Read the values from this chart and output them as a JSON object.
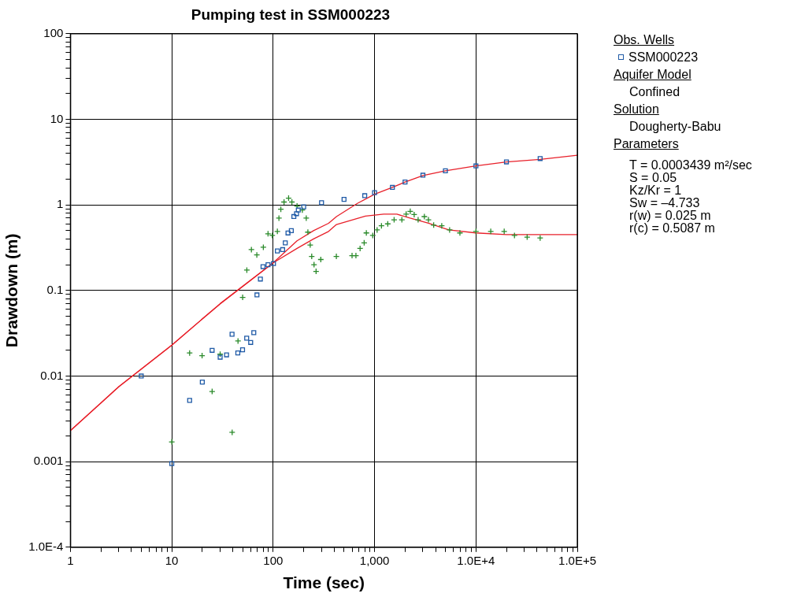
{
  "chart_data": {
    "type": "scatter",
    "title": "Pumping test in SSM000223",
    "xlabel": "Time (sec)",
    "ylabel": "Drawdown (m)",
    "log": "xy",
    "grid": true,
    "legend": "top right",
    "legend_title": "Obs. Wells",
    "xlim": [
      1,
      100000
    ],
    "ylim": [
      0.0001,
      100
    ],
    "xticks": [
      1,
      {
        "value": 2,
        "label": null
      },
      {
        "value": 3,
        "label": null
      },
      {
        "value": 4,
        "label": null
      },
      {
        "value": 5,
        "label": null
      },
      {
        "value": 6,
        "label": null
      },
      {
        "value": 7,
        "label": null
      },
      {
        "value": 8,
        "label": null
      },
      {
        "value": 9,
        "label": null
      },
      10,
      {
        "value": 20,
        "label": null
      },
      {
        "value": 30,
        "label": null
      },
      {
        "value": 40,
        "label": null
      },
      {
        "value": 50,
        "label": null
      },
      {
        "value": 60,
        "label": null
      },
      {
        "value": 70,
        "label": null
      },
      {
        "value": 80,
        "label": null
      },
      {
        "value": 90,
        "label": null
      },
      100,
      {
        "value": 200,
        "label": null
      },
      {
        "value": 300,
        "label": null
      },
      {
        "value": 400,
        "label": null
      },
      {
        "value": 500,
        "label": null
      },
      {
        "value": 600,
        "label": null
      },
      {
        "value": 700,
        "label": null
      },
      {
        "value": 800,
        "label": null
      },
      {
        "value": 900,
        "label": null
      },
      {
        "value": 1000,
        "label": "1,000"
      },
      {
        "value": 2000,
        "label": null
      },
      {
        "value": 3000,
        "label": null
      },
      {
        "value": 4000,
        "label": null
      },
      {
        "value": 5000,
        "label": null
      },
      {
        "value": 6000,
        "label": null
      },
      {
        "value": 7000,
        "label": null
      },
      {
        "value": 8000,
        "label": null
      },
      {
        "value": 9000,
        "label": null
      },
      {
        "value": 10000,
        "label": "1.0E+4"
      },
      {
        "value": 20000,
        "label": null
      },
      {
        "value": 30000,
        "label": null
      },
      {
        "value": 40000,
        "label": null
      },
      {
        "value": 50000,
        "label": null
      },
      {
        "value": 60000,
        "label": null
      },
      {
        "value": 70000,
        "label": null
      },
      {
        "value": 80000,
        "label": null
      },
      {
        "value": 90000,
        "label": null
      },
      {
        "value": 100000,
        "label": "1.0E+5"
      }
    ],
    "yticks": [
      {
        "value": 0.0001,
        "label": "1.0E-4"
      },
      {
        "value": 0.0002,
        "label": null
      },
      {
        "value": 0.0003,
        "label": null
      },
      {
        "value": 0.0004,
        "label": null
      },
      {
        "value": 0.0005,
        "label": null
      },
      {
        "value": 0.0006,
        "label": null
      },
      {
        "value": 0.0007,
        "label": null
      },
      {
        "value": 0.0008,
        "label": null
      },
      {
        "value": 0.0009,
        "label": null
      },
      0.001,
      {
        "value": 0.002,
        "label": null
      },
      {
        "value": 0.003,
        "label": null
      },
      {
        "value": 0.004,
        "label": null
      },
      {
        "value": 0.005,
        "label": null
      },
      {
        "value": 0.006,
        "label": null
      },
      {
        "value": 0.007,
        "label": null
      },
      {
        "value": 0.008,
        "label": null
      },
      {
        "value": 0.009,
        "label": null
      },
      0.01,
      {
        "value": 0.02,
        "label": null
      },
      {
        "value": 0.03,
        "label": null
      },
      {
        "value": 0.04,
        "label": null
      },
      {
        "value": 0.05,
        "label": null
      },
      {
        "value": 0.06,
        "label": null
      },
      {
        "value": 0.07,
        "label": null
      },
      {
        "value": 0.08,
        "label": null
      },
      {
        "value": 0.09,
        "label": null
      },
      0.1,
      {
        "value": 0.2,
        "label": null
      },
      {
        "value": 0.3,
        "label": null
      },
      {
        "value": 0.4,
        "label": null
      },
      {
        "value": 0.5,
        "label": null
      },
      {
        "value": 0.6,
        "label": null
      },
      {
        "value": 0.7,
        "label": null
      },
      {
        "value": 0.8,
        "label": null
      },
      {
        "value": 0.9,
        "label": null
      },
      1,
      {
        "value": 2,
        "label": null
      },
      {
        "value": 3,
        "label": null
      },
      {
        "value": 4,
        "label": null
      },
      {
        "value": 5,
        "label": null
      },
      {
        "value": 6,
        "label": null
      },
      {
        "value": 7,
        "label": null
      },
      {
        "value": 8,
        "label": null
      },
      {
        "value": 9,
        "label": null
      },
      10,
      {
        "value": 20,
        "label": null
      },
      {
        "value": 30,
        "label": null
      },
      {
        "value": 40,
        "label": null
      },
      {
        "value": 50,
        "label": null
      },
      {
        "value": 60,
        "label": null
      },
      {
        "value": 70,
        "label": null
      },
      {
        "value": 80,
        "label": null
      },
      {
        "value": 90,
        "label": null
      },
      100
    ],
    "series": [
      {
        "type": "line",
        "color": "#e8202a",
        "marker": "none",
        "x": [
          1,
          3,
          10,
          30,
          100,
          172,
          250,
          352,
          421,
          677,
          1000,
          1500,
          2000,
          3000,
          5000,
          10000,
          20000,
          43000,
          100000
        ],
        "values": [
          0.0023,
          0.0075,
          0.023,
          0.07,
          0.21,
          0.38,
          0.5,
          0.61,
          0.73,
          1.04,
          1.33,
          1.6,
          1.85,
          2.2,
          2.5,
          2.85,
          3.18,
          3.4,
          3.8
        ]
      },
      {
        "type": "line",
        "color": "#e8202a",
        "marker": "none",
        "x": [
          1,
          3,
          10,
          30,
          100,
          172,
          250,
          352,
          421,
          812,
          1230,
          1660,
          2240,
          3400,
          5400,
          10000,
          20000,
          100000
        ],
        "values": [
          0.0023,
          0.0075,
          0.023,
          0.07,
          0.21,
          0.31,
          0.4,
          0.49,
          0.59,
          0.74,
          0.78,
          0.78,
          0.7,
          0.61,
          0.51,
          0.47,
          0.45,
          0.45
        ]
      },
      {
        "type": "scatter",
        "name": "SSM000223",
        "color": "#1f5aa6",
        "marker": "square",
        "x": [
          5,
          10,
          15,
          20,
          25,
          30,
          34.7,
          39.3,
          44.8,
          49.9,
          54.8,
          60,
          64.4,
          69.2,
          74.8,
          79.4,
          89,
          100.7,
          110,
          124,
          131.7,
          140,
          151,
          160,
          170,
          177,
          200,
          300,
          500,
          800,
          1000,
          1500,
          2000,
          3000,
          5000,
          10000,
          20000,
          43000
        ],
        "values": [
          0.01,
          0.00095,
          0.0052,
          0.0085,
          0.02,
          0.0166,
          0.0177,
          0.0308,
          0.0186,
          0.0203,
          0.0277,
          0.0247,
          0.0321,
          0.0887,
          0.136,
          0.19,
          0.2,
          0.206,
          0.29,
          0.3,
          0.36,
          0.47,
          0.5,
          0.73,
          0.79,
          0.87,
          0.95,
          1.06,
          1.16,
          1.28,
          1.39,
          1.6,
          1.85,
          2.22,
          2.5,
          2.85,
          3.18,
          3.48
        ]
      },
      {
        "type": "scatter",
        "color": "#2a8a2a",
        "marker": "cross",
        "x": [
          10,
          15,
          19.9,
          25,
          30,
          39.4,
          45,
          50,
          55,
          61,
          69,
          80,
          89,
          98,
          110,
          114,
          119,
          128,
          142,
          153,
          172,
          194,
          212,
          220,
          232,
          240,
          253,
          265,
          295,
          420,
          600,
          655,
          720,
          790,
          830,
          960,
          1060,
          1170,
          1350,
          1560,
          1860,
          2050,
          2250,
          2460,
          2690,
          3100,
          3400,
          3830,
          4600,
          5500,
          6950,
          10000,
          14000,
          19000,
          24000,
          32000,
          43000
        ],
        "values": [
          0.0017,
          0.0186,
          0.0173,
          0.0066,
          0.018,
          0.0022,
          0.0257,
          0.083,
          0.173,
          0.3,
          0.26,
          0.32,
          0.46,
          0.44,
          0.49,
          0.7,
          0.89,
          1.08,
          1.2,
          1.08,
          0.97,
          0.87,
          0.7,
          0.48,
          0.34,
          0.25,
          0.2,
          0.167,
          0.23,
          0.25,
          0.255,
          0.255,
          0.31,
          0.36,
          0.47,
          0.44,
          0.51,
          0.57,
          0.6,
          0.67,
          0.67,
          0.78,
          0.84,
          0.77,
          0.67,
          0.73,
          0.67,
          0.58,
          0.57,
          0.51,
          0.47,
          0.49,
          0.49,
          0.49,
          0.44,
          0.42,
          0.41
        ]
      }
    ],
    "annotations": [
      "Aquifer Model",
      "Confined",
      "Solution",
      "Dougherty-Babu",
      "Parameters",
      "T = 0.0003439 m²/sec",
      "S = 0.05",
      "Kz/Kr = 1",
      "Sw = –4.733",
      "r(w) = 0.025 m",
      "r(c) = 0.5087 m"
    ]
  }
}
